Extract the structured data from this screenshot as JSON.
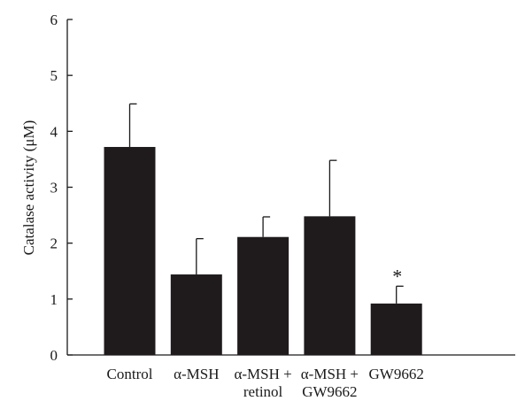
{
  "chart_data": {
    "type": "bar",
    "title": "",
    "xlabel": "",
    "ylabel": "Catalase activity (μM)",
    "ylim": [
      0,
      6
    ],
    "yticks": [
      0,
      1,
      2,
      3,
      4,
      5,
      6
    ],
    "categories": [
      [
        "Control"
      ],
      [
        "α-MSH"
      ],
      [
        "α-MSH +",
        "retinol"
      ],
      [
        "α-MSH +",
        "GW9662"
      ],
      [
        "GW9662"
      ]
    ],
    "values": [
      3.72,
      1.44,
      2.11,
      2.48,
      0.92
    ],
    "errors": [
      0.77,
      0.64,
      0.36,
      1.0,
      0.31
    ],
    "annotations": [
      "",
      "",
      "",
      "",
      "*"
    ],
    "bar_color": "#1f1a1c",
    "grid": false,
    "legend": "none"
  }
}
